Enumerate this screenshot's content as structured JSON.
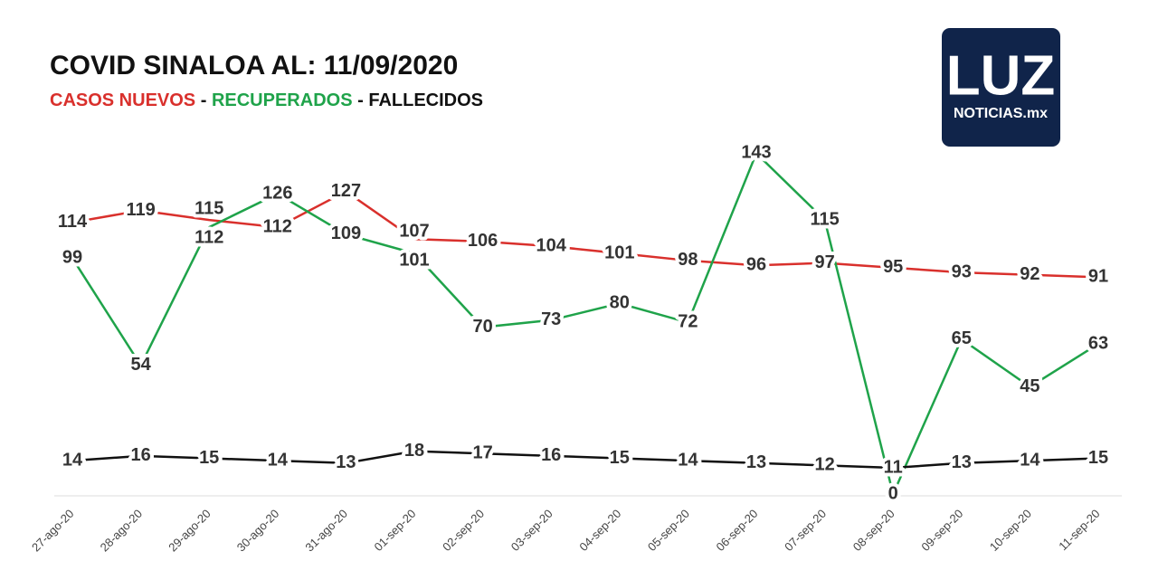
{
  "chart_data": {
    "type": "line",
    "title": "COVID SINALOA AL: 11/09/2020",
    "subtitle_separator": "-",
    "categories": [
      "27-ago-20",
      "28-ago-20",
      "29-ago-20",
      "30-ago-20",
      "31-ago-20",
      "01-sep-20",
      "02-sep-20",
      "03-sep-20",
      "04-sep-20",
      "05-sep-20",
      "06-sep-20",
      "07-sep-20",
      "08-sep-20",
      "09-sep-20",
      "10-sep-20",
      "11-sep-20"
    ],
    "series": [
      {
        "name": "CASOS NUEVOS",
        "color": "#d9302c",
        "values": [
          114,
          119,
          115,
          112,
          127,
          107,
          106,
          104,
          101,
          98,
          96,
          97,
          95,
          93,
          92,
          91
        ]
      },
      {
        "name": "RECUPERADOS",
        "color": "#1fa34a",
        "values": [
          99,
          54,
          112,
          126,
          109,
          101,
          70,
          73,
          80,
          72,
          143,
          115,
          0,
          65,
          45,
          63
        ]
      },
      {
        "name": "FALLECIDOS",
        "color": "#111111",
        "values": [
          14,
          16,
          15,
          14,
          13,
          18,
          17,
          16,
          15,
          14,
          13,
          12,
          11,
          13,
          14,
          15
        ]
      }
    ],
    "ylim": [
      0,
      150
    ],
    "data_labels": true
  },
  "logo": {
    "text": "LUZ",
    "subtext": "NOTICIAS.mx"
  }
}
